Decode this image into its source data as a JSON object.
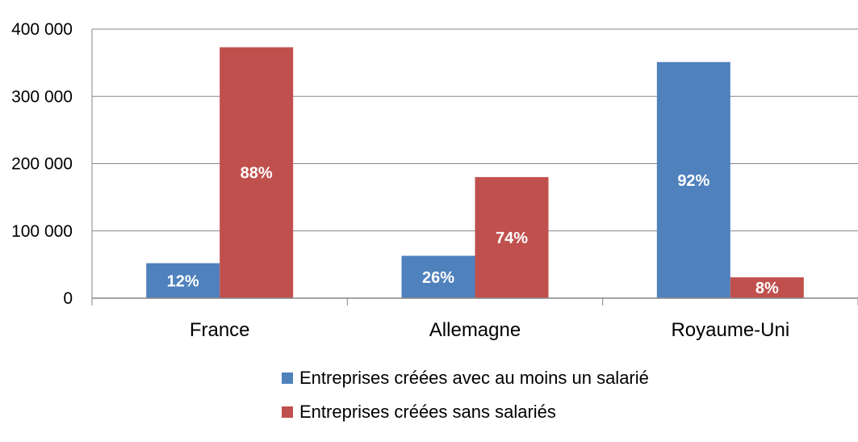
{
  "chart_data": {
    "type": "bar",
    "categories": [
      "France",
      "Allemagne",
      "Royaume-Uni"
    ],
    "series": [
      {
        "name": "Entreprises créées avec au moins un salarié",
        "color": "#4F81BD",
        "values": [
          52000,
          63000,
          351000
        ],
        "labels": [
          "12%",
          "26%",
          "92%"
        ]
      },
      {
        "name": "Entreprises créées sans salariés",
        "color": "#C0504D",
        "values": [
          373000,
          180000,
          31000
        ],
        "labels": [
          "88%",
          "74%",
          "8%"
        ]
      }
    ],
    "ylim": [
      0,
      400000
    ],
    "yticks": [
      0,
      100000,
      200000,
      300000,
      400000
    ],
    "ytick_labels": [
      "0",
      "100 000",
      "200 000",
      "300 000",
      "400 000"
    ],
    "grid": true,
    "legend_position": "bottom"
  }
}
